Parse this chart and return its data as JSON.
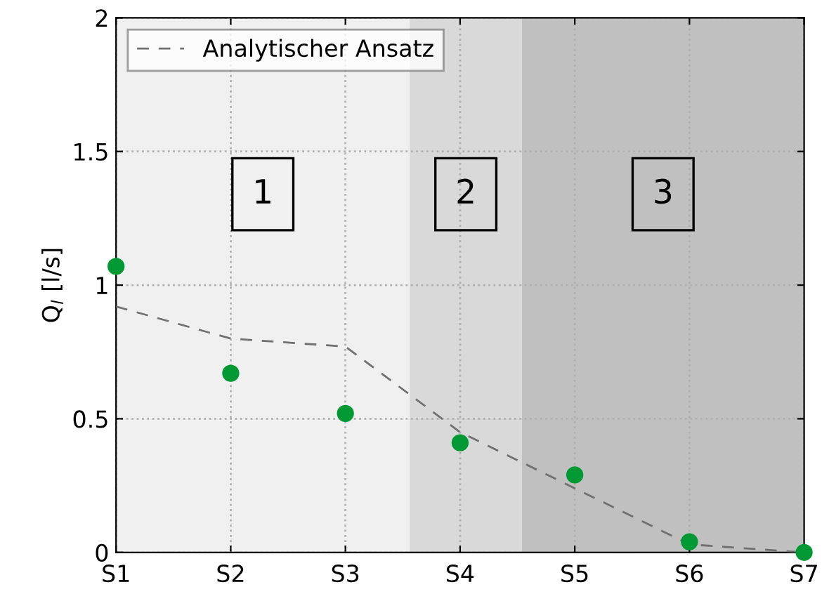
{
  "chart_data": {
    "type": "scatter",
    "ylabel": "Q$_{l}$ [l/s]",
    "categories": [
      "S1",
      "S2",
      "S3",
      "S4",
      "S5",
      "S6",
      "S7"
    ],
    "series": [
      {
        "color": "#009933",
        "marker": "circle",
        "values": [
          1.07,
          0.67,
          0.52,
          0.41,
          0.29,
          0.04,
          0.0
        ]
      },
      {
        "type": "line",
        "name": "Analytischer Ansatz",
        "color": "#707070",
        "line_style": "dashed",
        "marker": "none",
        "values": [
          0.92,
          0.8,
          0.77,
          0.45,
          0.24,
          0.03,
          0.0
        ]
      }
    ],
    "annotations": [
      "1",
      "2",
      "3"
    ],
    "ylim": [
      0,
      2
    ],
    "yticks": [
      0,
      0.5,
      1,
      1.5,
      2
    ],
    "grid": true,
    "legend": "top left"
  }
}
